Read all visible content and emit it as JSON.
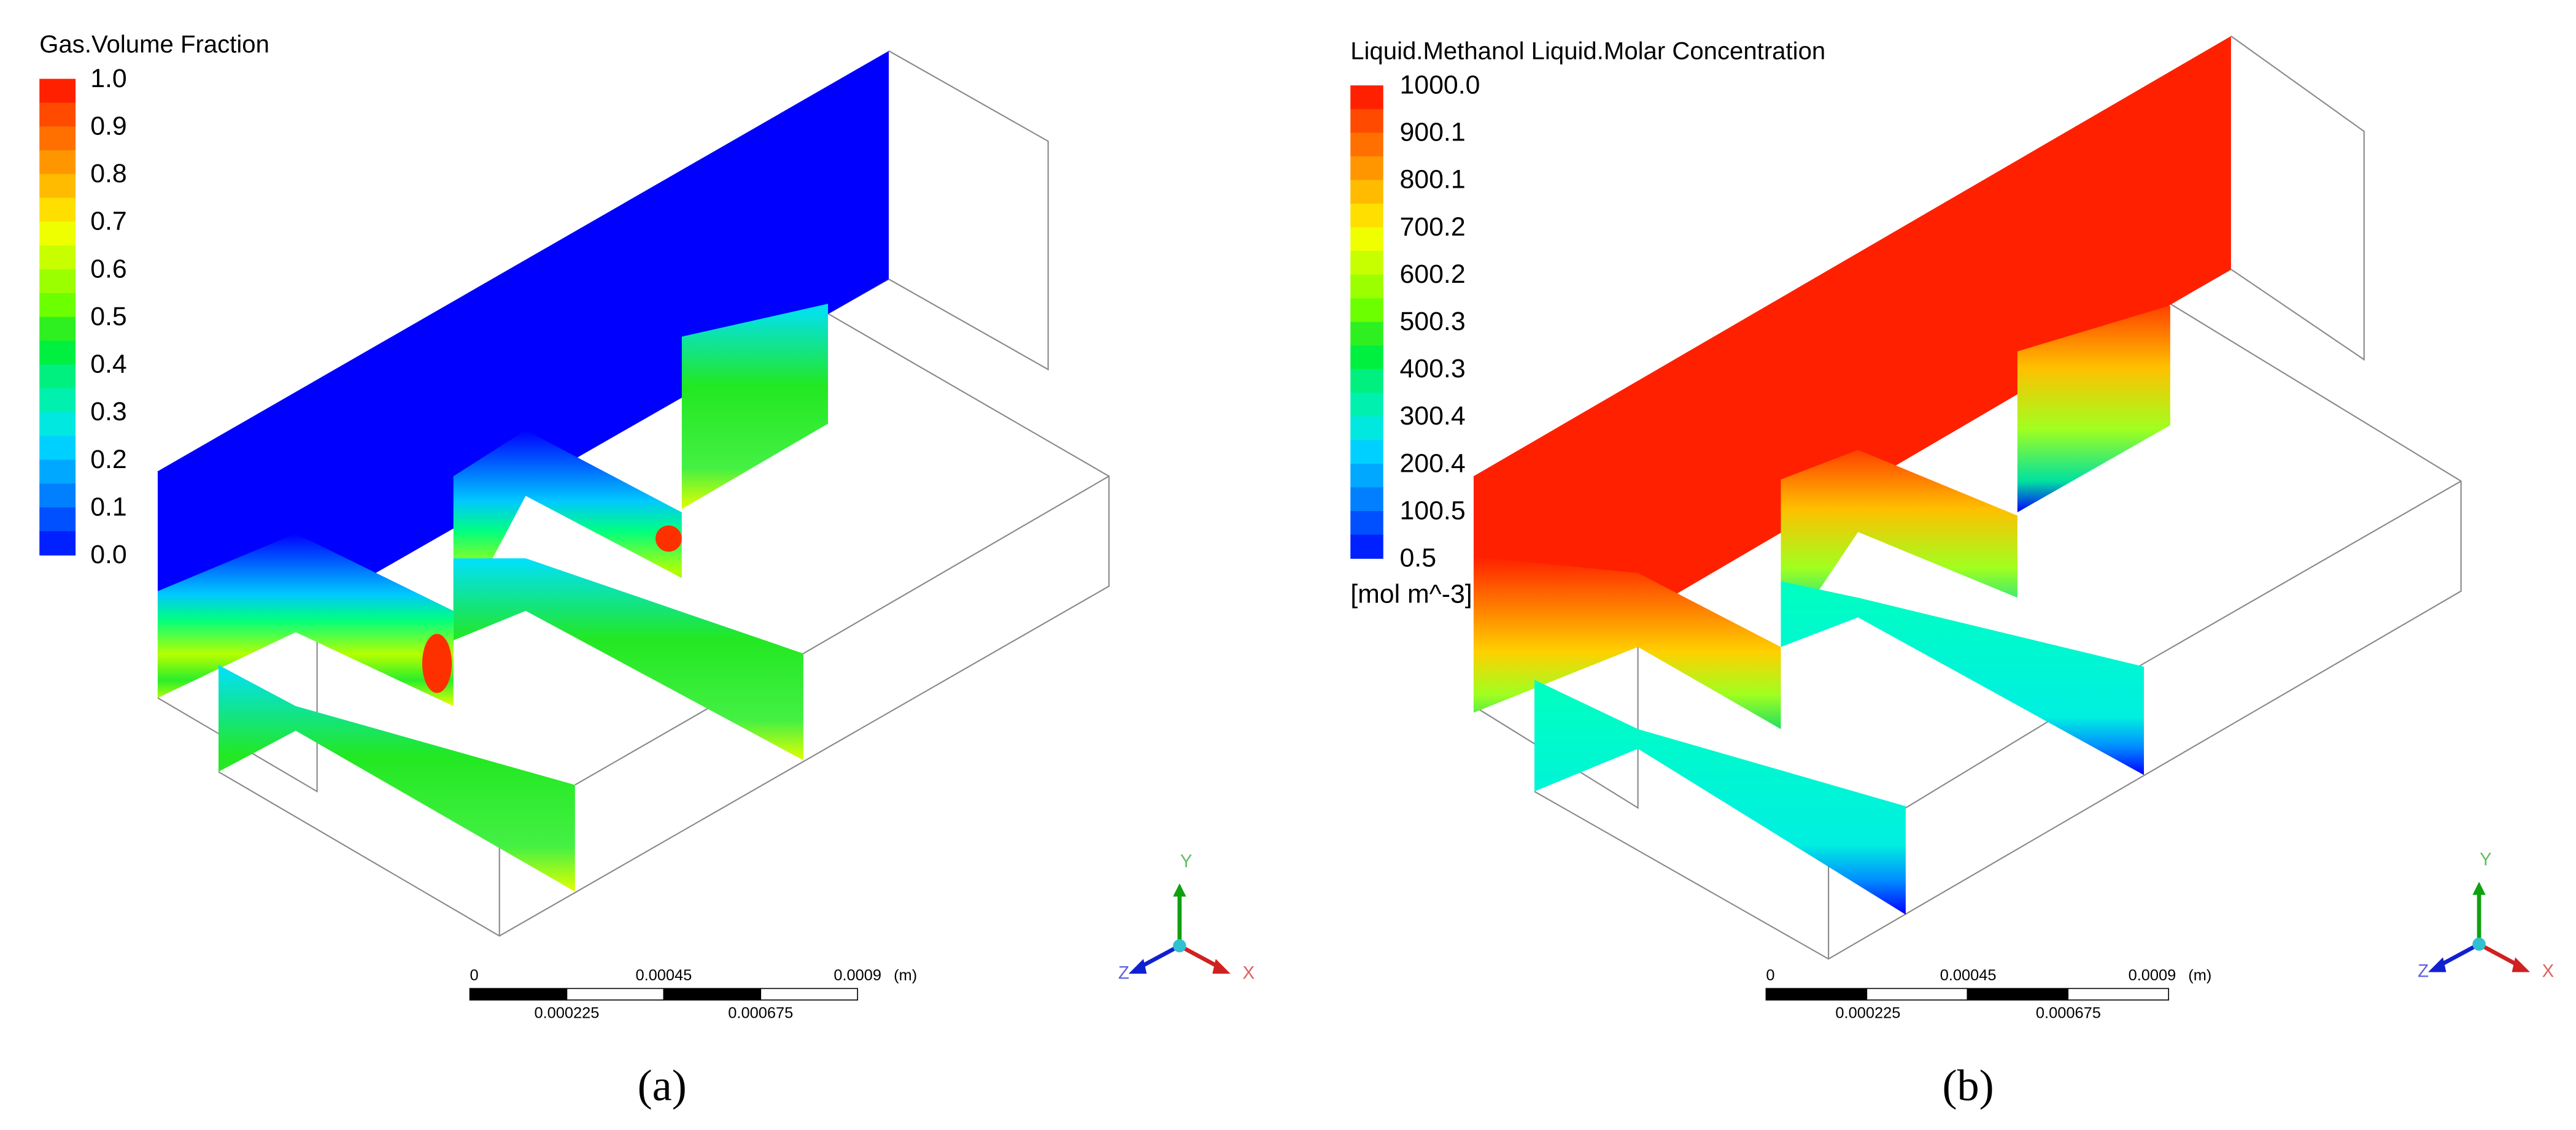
{
  "panels": [
    {
      "legend": {
        "title": "Gas.Volume Fraction",
        "labels": [
          "1.0",
          "0.9",
          "0.8",
          "0.7",
          "0.6",
          "0.5",
          "0.4",
          "0.3",
          "0.2",
          "0.1",
          "0.0"
        ]
      },
      "scale_bar": {
        "top_labels": [
          "0",
          "0.00045",
          "0.0009"
        ],
        "unit": "(m)",
        "bottom_labels": [
          "0.000225",
          "0.000675"
        ]
      },
      "axes": {
        "y": "Y",
        "z": "Z",
        "x": "X"
      },
      "caption": "(a)"
    },
    {
      "legend": {
        "title": "Liquid.Methanol Liquid.Molar Concentration",
        "labels": [
          "1000.0",
          "900.1",
          "800.1",
          "700.2",
          "600.2",
          "500.3",
          "400.3",
          "300.4",
          "200.4",
          "100.5",
          "0.5"
        ],
        "unit": "[mol m^-3]"
      },
      "scale_bar": {
        "top_labels": [
          "0",
          "0.00045",
          "0.0009"
        ],
        "unit": "(m)",
        "bottom_labels": [
          "0.000225",
          "0.000675"
        ]
      },
      "axes": {
        "y": "Y",
        "z": "Z",
        "x": "X"
      },
      "caption": "(b)"
    }
  ]
}
